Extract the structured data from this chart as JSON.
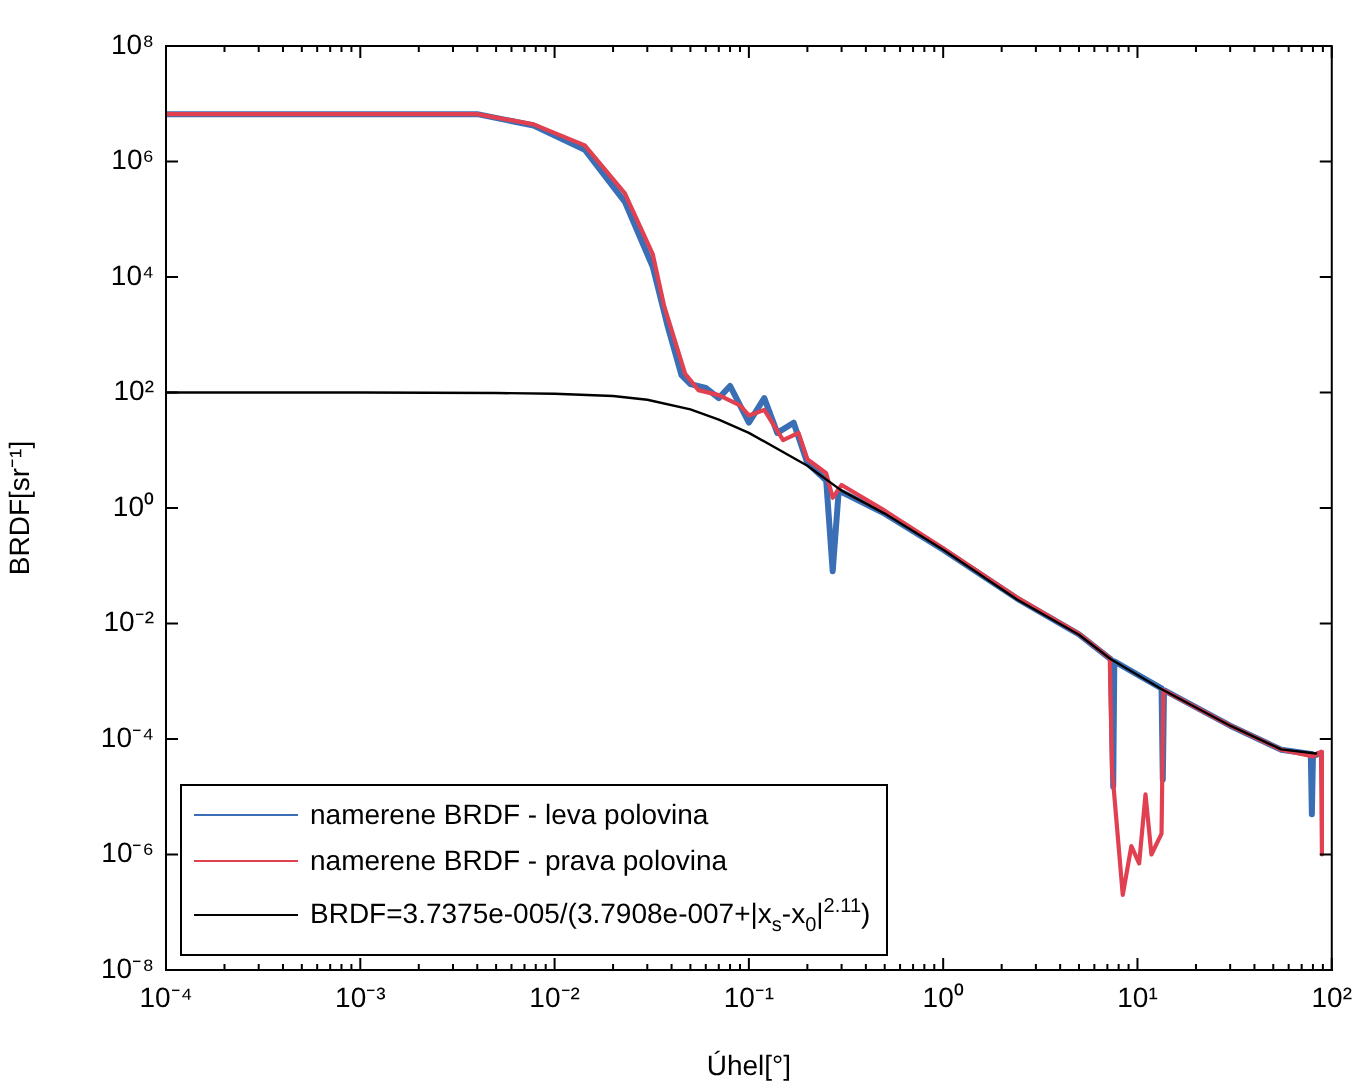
{
  "chart_data": {
    "type": "line",
    "xlabel": "Úhel[°]",
    "ylabel": "BRDF[sr⁻¹]",
    "log": "xy",
    "legend": "bottom left",
    "marker": "none",
    "line_style": "solid",
    "xlim": [
      0.0001,
      100
    ],
    "ylim": [
      1e-08,
      100000000
    ],
    "xticks": [
      {
        "value": 0.0001,
        "label": "10⁻⁴"
      },
      {
        "value": 0.0002,
        "label": null
      },
      {
        "value": 0.0003,
        "label": null
      },
      {
        "value": 0.0004,
        "label": null
      },
      {
        "value": 0.0005,
        "label": null
      },
      {
        "value": 0.0006,
        "label": null
      },
      {
        "value": 0.0007,
        "label": null
      },
      {
        "value": 0.0008,
        "label": null
      },
      {
        "value": 0.0009,
        "label": null
      },
      {
        "value": 0.001,
        "label": "10⁻³"
      },
      {
        "value": 0.002,
        "label": null
      },
      {
        "value": 0.003,
        "label": null
      },
      {
        "value": 0.004,
        "label": null
      },
      {
        "value": 0.005,
        "label": null
      },
      {
        "value": 0.006,
        "label": null
      },
      {
        "value": 0.007,
        "label": null
      },
      {
        "value": 0.008,
        "label": null
      },
      {
        "value": 0.009,
        "label": null
      },
      {
        "value": 0.01,
        "label": "10⁻²"
      },
      {
        "value": 0.02,
        "label": null
      },
      {
        "value": 0.03,
        "label": null
      },
      {
        "value": 0.04,
        "label": null
      },
      {
        "value": 0.05,
        "label": null
      },
      {
        "value": 0.06,
        "label": null
      },
      {
        "value": 0.07,
        "label": null
      },
      {
        "value": 0.08,
        "label": null
      },
      {
        "value": 0.09,
        "label": null
      },
      {
        "value": 0.1,
        "label": "10⁻¹"
      },
      {
        "value": 0.2,
        "label": null
      },
      {
        "value": 0.3,
        "label": null
      },
      {
        "value": 0.4,
        "label": null
      },
      {
        "value": 0.5,
        "label": null
      },
      {
        "value": 0.6,
        "label": null
      },
      {
        "value": 0.7,
        "label": null
      },
      {
        "value": 0.8,
        "label": null
      },
      {
        "value": 0.9,
        "label": null
      },
      {
        "value": 1,
        "label": "10⁰"
      },
      {
        "value": 2,
        "label": null
      },
      {
        "value": 3,
        "label": null
      },
      {
        "value": 4,
        "label": null
      },
      {
        "value": 5,
        "label": null
      },
      {
        "value": 6,
        "label": null
      },
      {
        "value": 7,
        "label": null
      },
      {
        "value": 8,
        "label": null
      },
      {
        "value": 9,
        "label": null
      },
      {
        "value": 10,
        "label": "10¹"
      },
      {
        "value": 20,
        "label": null
      },
      {
        "value": 30,
        "label": null
      },
      {
        "value": 40,
        "label": null
      },
      {
        "value": 50,
        "label": null
      },
      {
        "value": 60,
        "label": null
      },
      {
        "value": 70,
        "label": null
      },
      {
        "value": 80,
        "label": null
      },
      {
        "value": 90,
        "label": null
      },
      {
        "value": 100,
        "label": "10²"
      }
    ],
    "yticks": [
      {
        "value": 1e-08,
        "label": "10⁻⁸"
      },
      {
        "value": 1e-06,
        "label": "10⁻⁶"
      },
      {
        "value": 0.0001,
        "label": "10⁻⁴"
      },
      {
        "value": 0.01,
        "label": "10⁻²"
      },
      {
        "value": 1,
        "label": "10⁰"
      },
      {
        "value": 100,
        "label": "10²"
      },
      {
        "value": 10000,
        "label": "10⁴"
      },
      {
        "value": 1000000,
        "label": "10⁶"
      },
      {
        "value": 100000000,
        "label": "10⁸"
      }
    ],
    "series": [
      {
        "name": "namerene BRDF - leva polovina",
        "color": "#3a6fb5",
        "x": [
          0.0001,
          0.004,
          0.0078,
          0.0143,
          0.023,
          0.032,
          0.038,
          0.045,
          0.05,
          0.06,
          0.07,
          0.08,
          0.1,
          0.12,
          0.14,
          0.17,
          0.2,
          0.25,
          0.27,
          0.29,
          0.5,
          1,
          2.4,
          5,
          7.3,
          7.5,
          7.6,
          13.3,
          13.5,
          13.7,
          30,
          55,
          78,
          79,
          80,
          85
        ],
        "values": [
          6600000,
          6600000,
          4200000,
          1600000,
          200000,
          15000,
          1500,
          200,
          140,
          120,
          80,
          130,
          30,
          80,
          20,
          30,
          6,
          3,
          0.08,
          2,
          0.8,
          0.19,
          0.027,
          0.0065,
          0.0024,
          1.5e-05,
          0.0022,
          0.00075,
          2e-05,
          0.0007,
          0.00017,
          6.5e-05,
          5.5e-05,
          5e-06,
          5e-05,
          5.5e-05
        ]
      },
      {
        "name": "namerene BRDF - prava polovina",
        "color": "#e04050",
        "x": [
          0.0001,
          0.004,
          0.0078,
          0.0143,
          0.023,
          0.032,
          0.0366,
          0.047,
          0.055,
          0.07,
          0.09,
          0.1,
          0.12,
          0.15,
          0.18,
          0.2,
          0.25,
          0.27,
          0.3,
          0.5,
          1,
          2.4,
          5,
          7.2,
          7.4,
          8.4,
          9.3,
          10.2,
          11,
          11.8,
          13.3,
          13.6,
          30,
          55,
          80,
          88,
          89
        ],
        "values": [
          6600000,
          6600000,
          4400000,
          1900000,
          280000,
          25000,
          3200,
          210,
          110,
          90,
          60,
          40,
          50,
          15,
          20,
          7,
          4,
          1.5,
          2.5,
          0.9,
          0.2,
          0.028,
          0.0066,
          0.0025,
          3e-05,
          2e-07,
          1.4e-06,
          7e-07,
          1.1e-05,
          1e-06,
          2.3e-06,
          0.0007,
          0.00017,
          6.5e-05,
          5e-05,
          6e-05,
          1e-06
        ]
      },
      {
        "name": "BRDF=3.7375e-005/(3.7908e-007+|x$_{s}$-x$_{0}$|$^{2.11}$)",
        "color": "#000000",
        "x": [
          0.0001,
          0.001,
          0.005,
          0.01,
          0.02,
          0.03,
          0.05,
          0.07,
          0.1,
          0.2,
          0.3,
          0.5,
          1,
          2.4,
          5,
          7.3,
          13.4,
          30,
          55,
          83
        ],
        "values": [
          100,
          100,
          98,
          95,
          87,
          75,
          51,
          34,
          20,
          5.4,
          2,
          0.8,
          0.19,
          0.026,
          0.0064,
          0.0024,
          0.00072,
          0.00017,
          6.6e-05,
          5.6e-05
        ]
      }
    ]
  }
}
